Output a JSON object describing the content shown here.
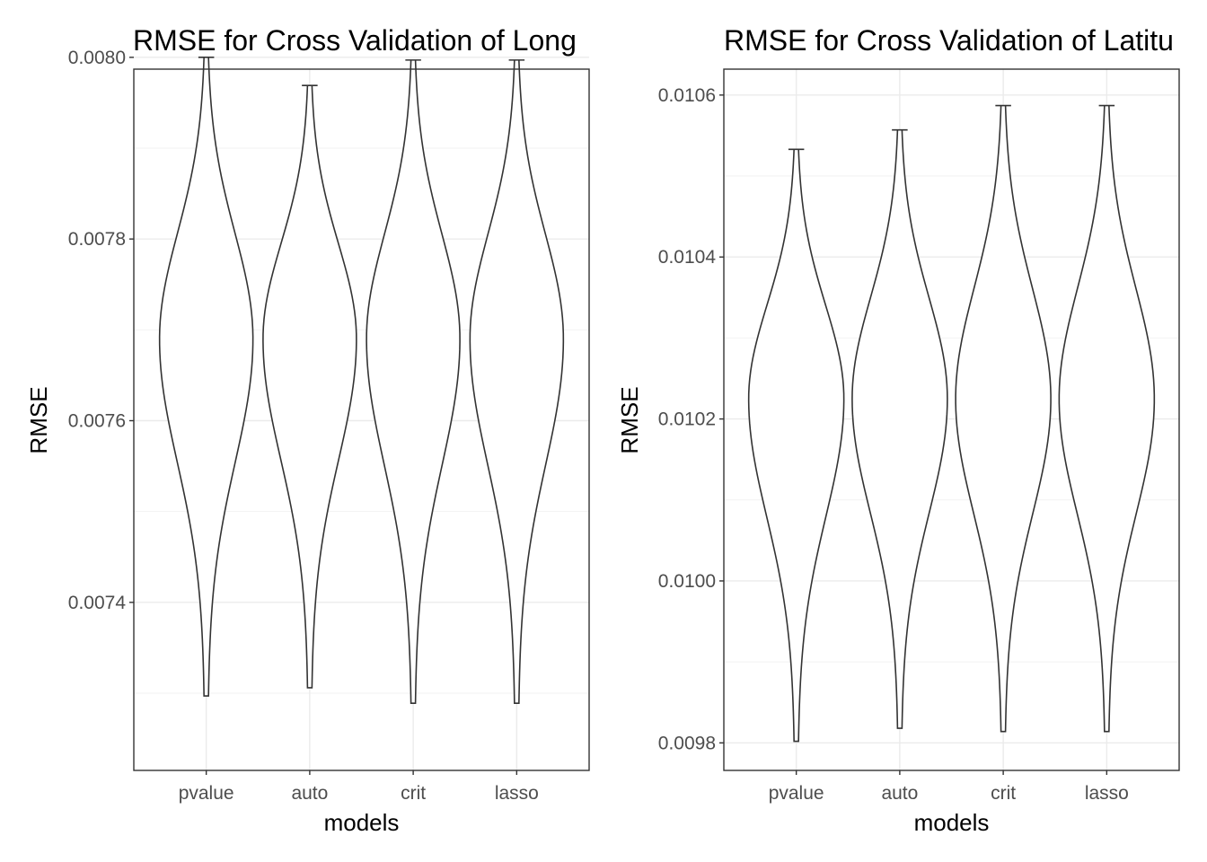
{
  "chart_data": [
    {
      "type": "violin",
      "title": "RMSE for Cross Validation of Long",
      "xlabel": "models",
      "ylabel": "RMSE",
      "categories": [
        "pvalue",
        "auto",
        "crit",
        "lasso"
      ],
      "ylim": [
        0.007215,
        0.007987
      ],
      "y_ticks": [
        0.0074,
        0.0076,
        0.0078,
        0.008
      ],
      "y_tick_labels": [
        "0.0074",
        "0.0076",
        "0.0078",
        "0.0080"
      ],
      "grid": true,
      "series": [
        {
          "category": "pvalue",
          "min": 0.007297,
          "max": 0.008,
          "mode": 0.00769
        },
        {
          "category": "auto",
          "min": 0.007306,
          "max": 0.007969,
          "mode": 0.00769
        },
        {
          "category": "crit",
          "min": 0.007289,
          "max": 0.007997,
          "mode": 0.00769
        },
        {
          "category": "lasso",
          "min": 0.007289,
          "max": 0.007997,
          "mode": 0.00769
        }
      ]
    },
    {
      "type": "violin",
      "title": "RMSE for Cross Validation of Latitu",
      "xlabel": "models",
      "ylabel": "RMSE",
      "categories": [
        "pvalue",
        "auto",
        "crit",
        "lasso"
      ],
      "ylim": [
        0.009766,
        0.010632
      ],
      "y_ticks": [
        0.0098,
        0.01,
        0.0102,
        0.0104,
        0.0106
      ],
      "y_tick_labels": [
        "0.0098",
        "0.0100",
        "0.0102",
        "0.0104",
        "0.0106"
      ],
      "grid": true,
      "series": [
        {
          "category": "pvalue",
          "min": 0.009802,
          "max": 0.010533,
          "mode": 0.010225
        },
        {
          "category": "auto",
          "min": 0.009818,
          "max": 0.010557,
          "mode": 0.010225
        },
        {
          "category": "crit",
          "min": 0.009814,
          "max": 0.010587,
          "mode": 0.010225
        },
        {
          "category": "lasso",
          "min": 0.009814,
          "max": 0.010587,
          "mode": 0.010225
        }
      ]
    }
  ]
}
